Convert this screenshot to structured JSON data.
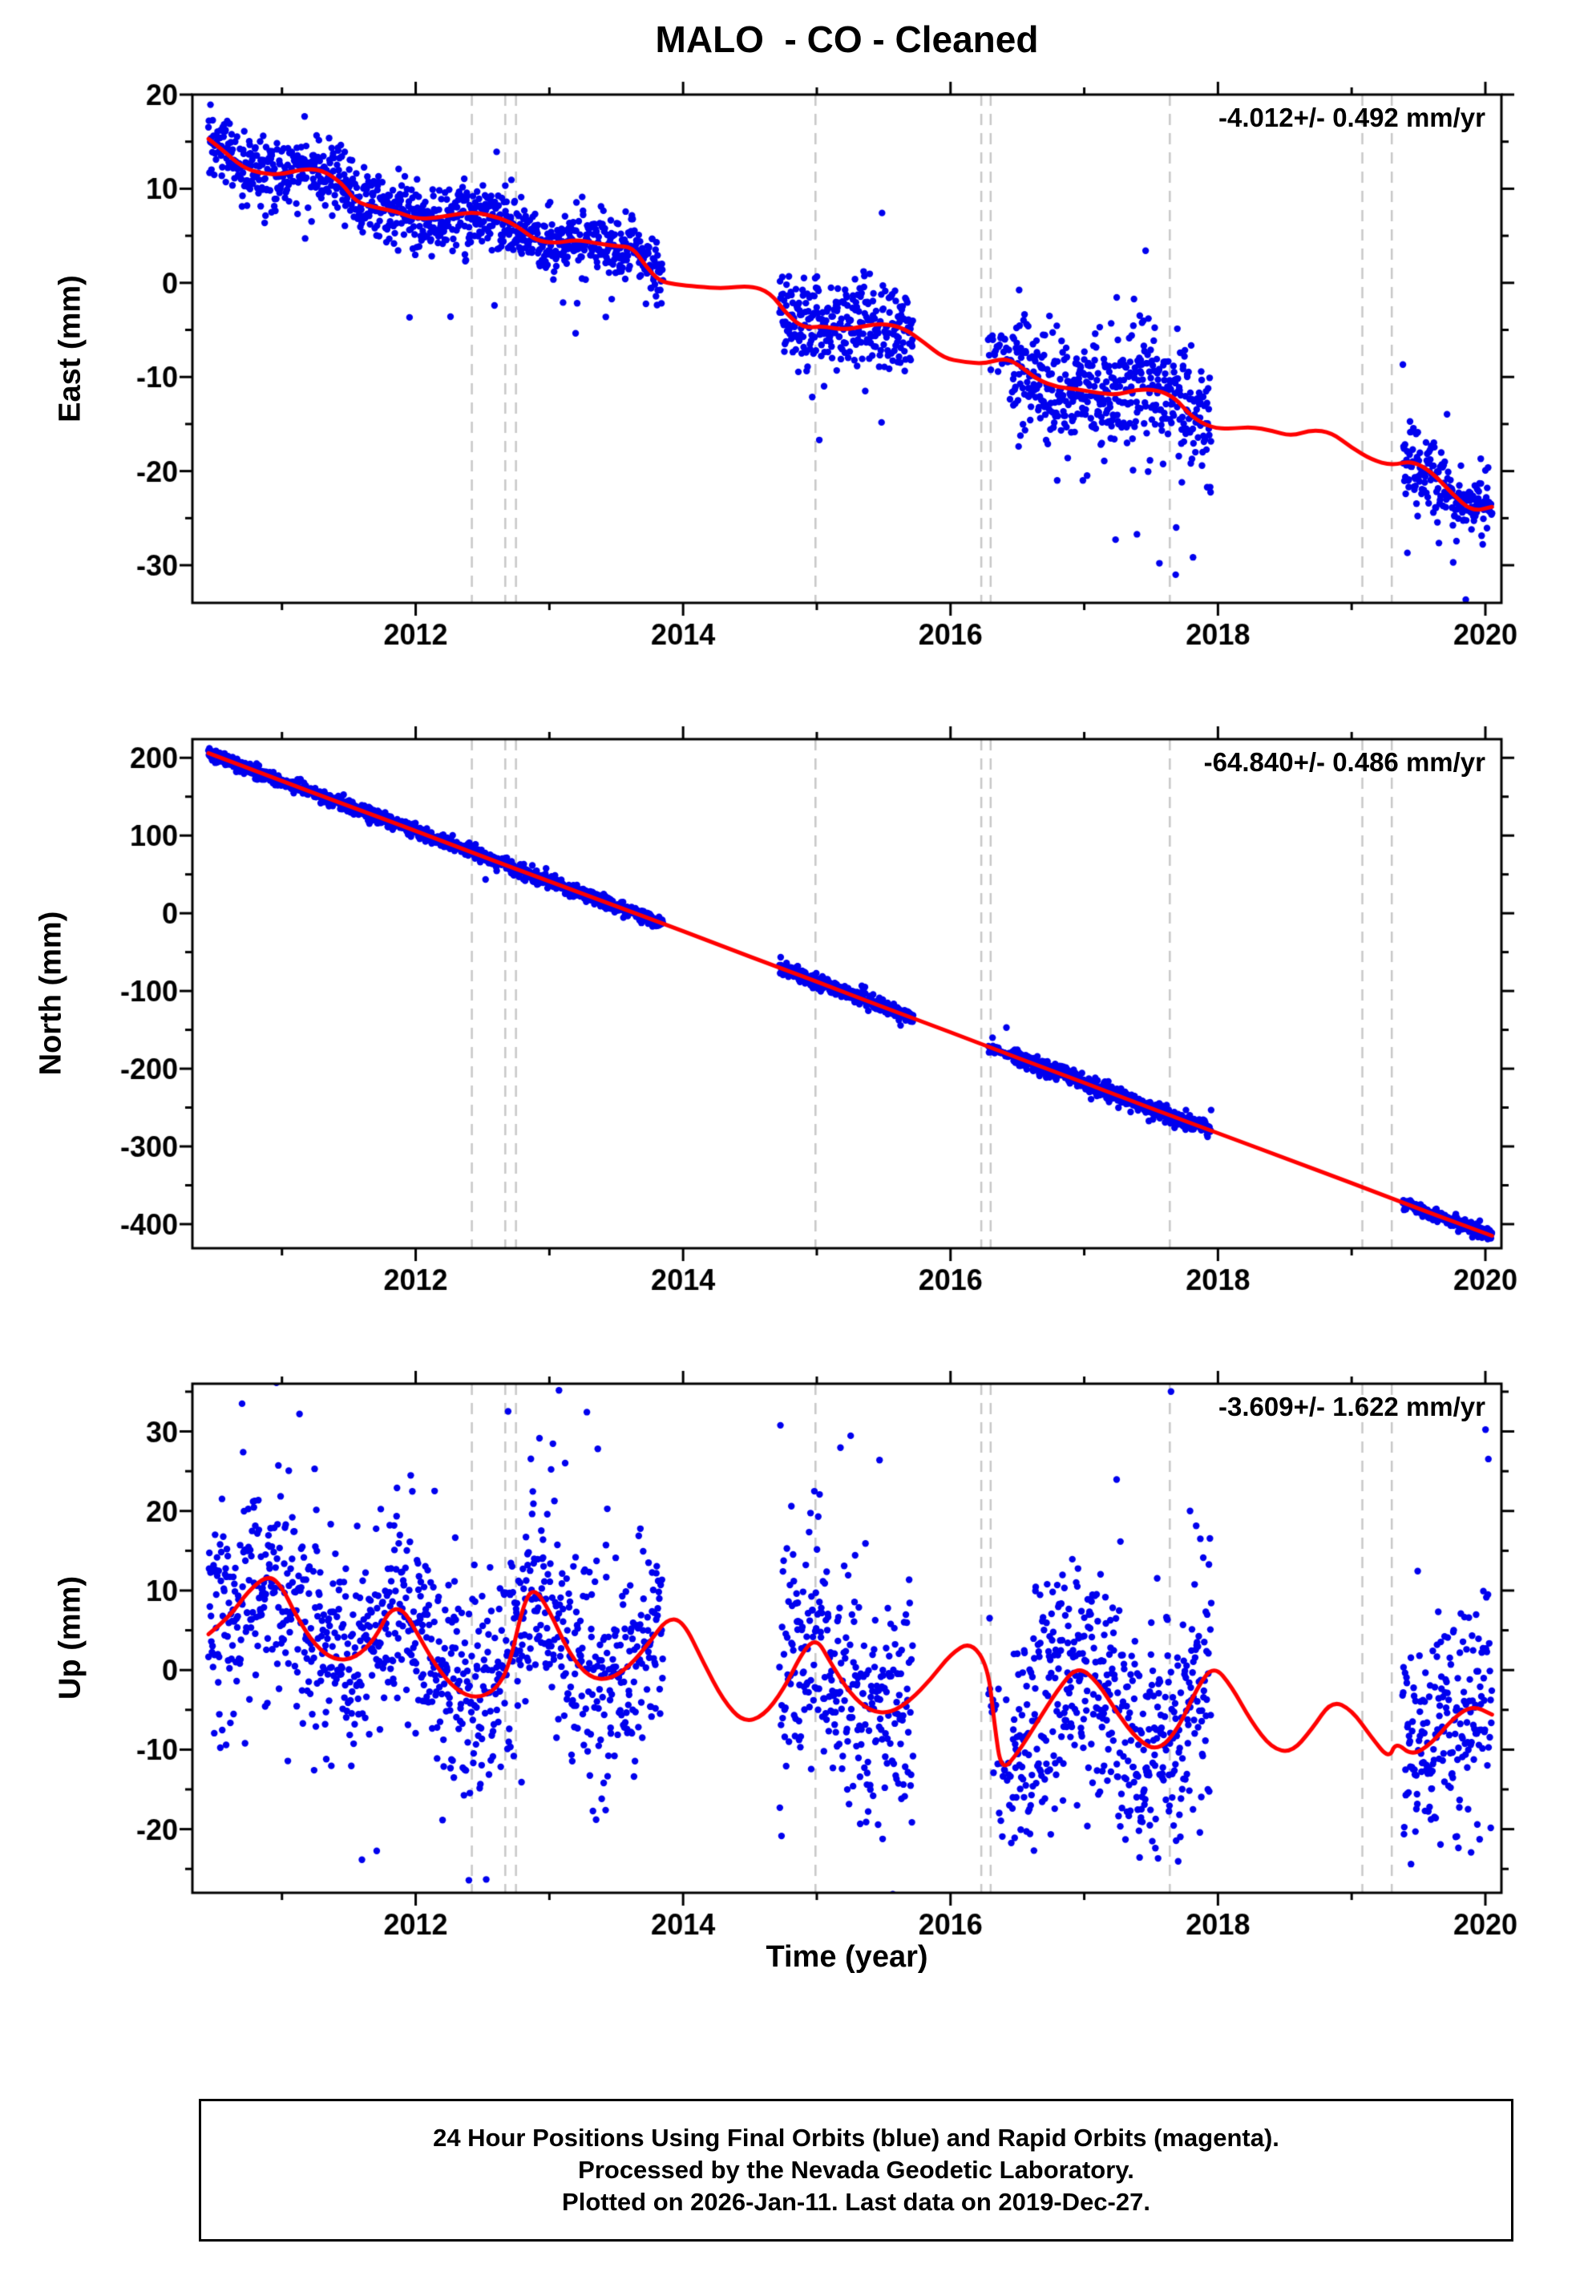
{
  "title": "MALO  - CO - Cleaned",
  "xlabel": "Time (year)",
  "footer": {
    "lines": [
      "24 Hour Positions Using Final Orbits (blue) and Rapid Orbits (magenta).",
      "Processed by the Nevada Geodetic Laboratory.",
      "Plotted on 2026-Jan-11. Last data on 2019-Dec-27."
    ]
  },
  "colors": {
    "point": "#0000ee",
    "model_line": "#ff0000",
    "event_line": "#c8c8c8",
    "frame": "#000000"
  },
  "x_axis": {
    "range": [
      2010.33,
      2020.12
    ],
    "major_ticks": [
      2012,
      2014,
      2016,
      2018,
      2020
    ],
    "minor_step": 1
  },
  "event_lines": [
    2012.42,
    2012.67,
    2012.75,
    2014.99,
    2016.23,
    2016.3,
    2017.64,
    2019.08,
    2019.3
  ],
  "chart_data": [
    {
      "type": "scatter",
      "name": "east",
      "ylabel": "East (mm)",
      "annotation": "-4.012+/- 0.492 mm/yr",
      "rate_mm_yr": -4.012,
      "rate_sigma": 0.492,
      "ylim": [
        -34,
        20
      ],
      "yticks": [
        20,
        10,
        0,
        -10,
        -20,
        -30
      ],
      "y_minor_step": 5,
      "outlier_rate": 0.02,
      "outlier_bias": 0.7,
      "model_line": [
        [
          2010.45,
          15.3
        ],
        [
          2010.55,
          14.2
        ],
        [
          2010.7,
          12.3
        ],
        [
          2010.85,
          11.6
        ],
        [
          2011.0,
          11.5
        ],
        [
          2011.15,
          12.1
        ],
        [
          2011.3,
          12.0
        ],
        [
          2011.45,
          10.6
        ],
        [
          2011.55,
          8.6
        ],
        [
          2011.7,
          8.0
        ],
        [
          2011.85,
          7.6
        ],
        [
          2012.0,
          6.8
        ],
        [
          2012.15,
          6.9
        ],
        [
          2012.3,
          7.3
        ],
        [
          2012.45,
          7.5
        ],
        [
          2012.6,
          7.0
        ],
        [
          2012.7,
          6.5
        ],
        [
          2012.8,
          5.6
        ],
        [
          2012.9,
          4.5
        ],
        [
          2013.05,
          4.2
        ],
        [
          2013.2,
          4.6
        ],
        [
          2013.35,
          4.2
        ],
        [
          2013.5,
          3.9
        ],
        [
          2013.62,
          3.8
        ],
        [
          2013.72,
          1.8
        ],
        [
          2013.82,
          0.2
        ],
        [
          2013.95,
          -0.2
        ],
        [
          2014.1,
          -0.4
        ],
        [
          2014.3,
          -0.6
        ],
        [
          2014.5,
          -0.3
        ],
        [
          2014.65,
          -1.0
        ],
        [
          2014.78,
          -3.4
        ],
        [
          2014.9,
          -4.8
        ],
        [
          2015.05,
          -4.6
        ],
        [
          2015.2,
          -5.0
        ],
        [
          2015.35,
          -4.6
        ],
        [
          2015.5,
          -4.3
        ],
        [
          2015.65,
          -4.8
        ],
        [
          2015.8,
          -6.3
        ],
        [
          2015.95,
          -8.0
        ],
        [
          2016.1,
          -8.4
        ],
        [
          2016.25,
          -8.6
        ],
        [
          2016.4,
          -8.0
        ],
        [
          2016.5,
          -8.6
        ],
        [
          2016.65,
          -10.3
        ],
        [
          2016.8,
          -11.1
        ],
        [
          2016.95,
          -11.3
        ],
        [
          2017.1,
          -11.7
        ],
        [
          2017.25,
          -11.9
        ],
        [
          2017.4,
          -11.3
        ],
        [
          2017.55,
          -11.4
        ],
        [
          2017.68,
          -12.2
        ],
        [
          2017.8,
          -14.2
        ],
        [
          2017.95,
          -15.4
        ],
        [
          2018.1,
          -15.5
        ],
        [
          2018.25,
          -15.3
        ],
        [
          2018.4,
          -15.7
        ],
        [
          2018.55,
          -16.3
        ],
        [
          2018.7,
          -15.6
        ],
        [
          2018.85,
          -15.9
        ],
        [
          2019.0,
          -17.5
        ],
        [
          2019.15,
          -18.8
        ],
        [
          2019.3,
          -19.4
        ],
        [
          2019.45,
          -18.9
        ],
        [
          2019.6,
          -20.1
        ],
        [
          2019.75,
          -22.4
        ],
        [
          2019.9,
          -24.3
        ],
        [
          2020.05,
          -23.8
        ]
      ],
      "scatter_segments": [
        {
          "t0": 2010.45,
          "t1": 2013.85,
          "n": 1000,
          "sigma": 1.8
        },
        {
          "t0": 2014.72,
          "t1": 2015.72,
          "n": 300,
          "sigma": 2.2
        },
        {
          "t0": 2016.28,
          "t1": 2016.46,
          "n": 26,
          "sigma": 2.0
        },
        {
          "t0": 2016.46,
          "t1": 2017.95,
          "n": 480,
          "sigma": 3.2
        },
        {
          "t0": 2019.38,
          "t1": 2020.05,
          "n": 200,
          "sigma": 1.9
        }
      ]
    },
    {
      "type": "scatter",
      "name": "north",
      "ylabel": "North (mm)",
      "annotation": "-64.840+/- 0.486 mm/yr",
      "rate_mm_yr": -64.84,
      "rate_sigma": 0.486,
      "ylim": [
        -431,
        224
      ],
      "yticks": [
        200,
        100,
        0,
        -100,
        -200,
        -300,
        -400
      ],
      "y_minor_step": 50,
      "outlier_rate": 0.004,
      "outlier_bias": 0.5,
      "model_line": [
        [
          2010.45,
          206
        ],
        [
          2011.0,
          170
        ],
        [
          2011.5,
          138
        ],
        [
          2012.0,
          106
        ],
        [
          2012.5,
          73
        ],
        [
          2013.0,
          41
        ],
        [
          2013.5,
          9
        ],
        [
          2014.0,
          -23
        ],
        [
          2014.5,
          -56
        ],
        [
          2015.0,
          -88
        ],
        [
          2015.5,
          -121
        ],
        [
          2016.0,
          -153
        ],
        [
          2016.5,
          -186
        ],
        [
          2017.0,
          -218
        ],
        [
          2017.5,
          -251
        ],
        [
          2018.0,
          -283
        ],
        [
          2018.5,
          -315
        ],
        [
          2019.0,
          -347
        ],
        [
          2019.5,
          -380
        ],
        [
          2020.05,
          -415
        ]
      ],
      "scatter_segments": [
        {
          "t0": 2010.45,
          "t1": 2013.85,
          "n": 1000,
          "sigma": 4.5
        },
        {
          "t0": 2014.72,
          "t1": 2015.72,
          "n": 300,
          "sigma": 4.5
        },
        {
          "t0": 2016.28,
          "t1": 2016.46,
          "n": 26,
          "sigma": 4.5
        },
        {
          "t0": 2016.46,
          "t1": 2017.95,
          "n": 480,
          "sigma": 5.5
        },
        {
          "t0": 2019.38,
          "t1": 2020.05,
          "n": 200,
          "sigma": 4.0
        }
      ]
    },
    {
      "type": "scatter",
      "name": "up",
      "ylabel": "Up (mm)",
      "annotation": "-3.609+/- 1.622 mm/yr",
      "rate_mm_yr": -3.609,
      "rate_sigma": 1.622,
      "ylim": [
        -28,
        36
      ],
      "yticks": [
        30,
        20,
        10,
        0,
        -10,
        -20
      ],
      "y_minor_step": 5,
      "outlier_rate": 0.02,
      "outlier_bias": 0.45,
      "model_line": [
        [
          2010.45,
          4.5
        ],
        [
          2010.6,
          6.5
        ],
        [
          2010.75,
          10.0
        ],
        [
          2010.9,
          12.0
        ],
        [
          2011.0,
          10.5
        ],
        [
          2011.1,
          7.0
        ],
        [
          2011.25,
          3.0
        ],
        [
          2011.4,
          1.2
        ],
        [
          2011.55,
          1.5
        ],
        [
          2011.7,
          4.0
        ],
        [
          2011.8,
          7.5
        ],
        [
          2011.9,
          7.8
        ],
        [
          2012.0,
          5.0
        ],
        [
          2012.15,
          0.5
        ],
        [
          2012.3,
          -2.5
        ],
        [
          2012.45,
          -3.6
        ],
        [
          2012.6,
          -2.5
        ],
        [
          2012.7,
          0.5
        ],
        [
          2012.8,
          8.0
        ],
        [
          2012.88,
          10.5
        ],
        [
          2013.0,
          7.5
        ],
        [
          2013.15,
          2.0
        ],
        [
          2013.3,
          -1.0
        ],
        [
          2013.45,
          -1.2
        ],
        [
          2013.6,
          0.5
        ],
        [
          2013.75,
          3.5
        ],
        [
          2013.88,
          6.5
        ],
        [
          2014.0,
          6.2
        ],
        [
          2014.15,
          1.0
        ],
        [
          2014.3,
          -3.8
        ],
        [
          2014.45,
          -6.6
        ],
        [
          2014.6,
          -5.8
        ],
        [
          2014.75,
          -2.5
        ],
        [
          2014.9,
          2.5
        ],
        [
          2015.0,
          4.0
        ],
        [
          2015.1,
          1.0
        ],
        [
          2015.25,
          -3.0
        ],
        [
          2015.4,
          -5.2
        ],
        [
          2015.55,
          -5.4
        ],
        [
          2015.7,
          -3.8
        ],
        [
          2015.85,
          -1.2
        ],
        [
          2016.0,
          2.0
        ],
        [
          2016.15,
          3.6
        ],
        [
          2016.28,
          0.5
        ],
        [
          2016.33,
          -7.0
        ],
        [
          2016.38,
          -12.8
        ],
        [
          2016.5,
          -10.5
        ],
        [
          2016.65,
          -6.5
        ],
        [
          2016.8,
          -2.5
        ],
        [
          2016.95,
          0.6
        ],
        [
          2017.1,
          -1.5
        ],
        [
          2017.25,
          -5.5
        ],
        [
          2017.4,
          -8.8
        ],
        [
          2017.55,
          -10.2
        ],
        [
          2017.7,
          -7.5
        ],
        [
          2017.85,
          -2.0
        ],
        [
          2017.97,
          0.6
        ],
        [
          2018.1,
          -2.0
        ],
        [
          2018.25,
          -6.5
        ],
        [
          2018.4,
          -9.8
        ],
        [
          2018.55,
          -10.4
        ],
        [
          2018.7,
          -7.5
        ],
        [
          2018.85,
          -3.8
        ],
        [
          2019.0,
          -5.0
        ],
        [
          2019.15,
          -8.5
        ],
        [
          2019.28,
          -11.2
        ],
        [
          2019.33,
          -9.0
        ],
        [
          2019.45,
          -10.8
        ],
        [
          2019.6,
          -9.2
        ],
        [
          2019.75,
          -6.2
        ],
        [
          2019.9,
          -4.4
        ],
        [
          2020.05,
          -5.6
        ]
      ],
      "scatter_segments": [
        {
          "t0": 2010.45,
          "t1": 2013.85,
          "n": 1000,
          "sigma": 7.0
        },
        {
          "t0": 2014.72,
          "t1": 2015.72,
          "n": 300,
          "sigma": 7.0
        },
        {
          "t0": 2016.28,
          "t1": 2016.46,
          "n": 26,
          "sigma": 6.0
        },
        {
          "t0": 2016.46,
          "t1": 2017.95,
          "n": 480,
          "sigma": 8.0
        },
        {
          "t0": 2019.38,
          "t1": 2020.05,
          "n": 200,
          "sigma": 6.5
        }
      ]
    }
  ]
}
